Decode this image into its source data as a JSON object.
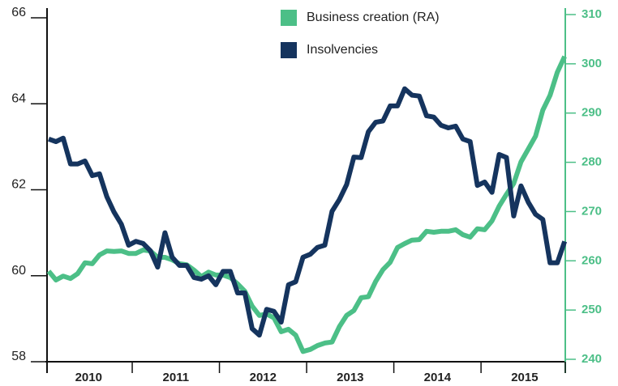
{
  "chart_data": {
    "type": "line",
    "legend": "top",
    "categories": [
      null,
      null,
      null,
      null,
      null,
      null,
      "2010",
      null,
      null,
      null,
      null,
      null,
      null,
      null,
      null,
      null,
      null,
      null,
      "2011",
      null,
      null,
      null,
      null,
      null,
      null,
      null,
      null,
      null,
      null,
      null,
      "2012",
      null,
      null,
      null,
      null,
      null,
      null,
      null,
      null,
      null,
      null,
      null,
      "2013",
      null,
      null,
      null,
      null,
      null,
      null,
      null,
      null,
      null,
      null,
      null,
      "2014",
      null,
      null,
      null,
      null,
      null,
      null,
      null,
      null,
      null,
      null,
      null,
      "2015",
      null,
      null,
      null,
      null,
      null
    ],
    "series": [
      {
        "name": "Business creation (RA)",
        "color": "#4cbf87",
        "axis": "y2",
        "values": [
          257.9,
          256.1,
          256.9,
          256.4,
          257.4,
          259.6,
          259.4,
          261.2,
          262.0,
          261.9,
          262.0,
          261.5,
          261.5,
          262.2,
          262.0,
          260.7,
          260.7,
          260.2,
          259.4,
          259.2,
          258.1,
          256.8,
          257.7,
          257.1,
          257.1,
          256.6,
          255.3,
          253.8,
          250.8,
          248.9,
          249.2,
          248.4,
          245.6,
          246.1,
          244.9,
          241.6,
          242.0,
          242.8,
          243.3,
          243.5,
          246.6,
          248.9,
          249.9,
          252.5,
          252.7,
          255.8,
          258.2,
          259.7,
          262.7,
          263.5,
          264.2,
          264.3,
          266.0,
          265.8,
          266.0,
          266.0,
          266.3,
          265.3,
          264.8,
          266.5,
          266.3,
          268.1,
          271.1,
          273.5,
          275.7,
          280.1,
          282.7,
          285.3,
          290.6,
          293.6,
          298.3,
          301.5
        ]
      },
      {
        "name": "Insolvencies",
        "color": "#15345e",
        "values": [
          63.18,
          63.12,
          63.2,
          62.6,
          62.6,
          62.67,
          62.33,
          62.37,
          61.84,
          61.48,
          61.2,
          60.71,
          60.8,
          60.75,
          60.58,
          60.2,
          61.0,
          60.43,
          60.24,
          60.24,
          59.96,
          59.92,
          60.0,
          59.79,
          60.1,
          60.1,
          59.6,
          59.6,
          58.77,
          58.62,
          59.22,
          59.17,
          58.92,
          59.79,
          59.86,
          60.43,
          60.5,
          60.66,
          60.71,
          61.5,
          61.77,
          62.12,
          62.76,
          62.75,
          63.35,
          63.57,
          63.6,
          63.95,
          63.95,
          64.35,
          64.2,
          64.18,
          63.72,
          63.69,
          63.5,
          63.44,
          63.48,
          63.18,
          63.12,
          62.1,
          62.18,
          61.94,
          62.82,
          62.75,
          61.39,
          62.09,
          61.71,
          61.43,
          61.31,
          60.3,
          60.3,
          60.8
        ]
      }
    ],
    "ylim": [
      58,
      66
    ],
    "yticks": [
      58,
      60,
      62,
      64,
      66
    ],
    "y2lim": [
      240,
      310
    ],
    "y2ticks": [
      240,
      250,
      260,
      270,
      280,
      290,
      300,
      310
    ]
  }
}
